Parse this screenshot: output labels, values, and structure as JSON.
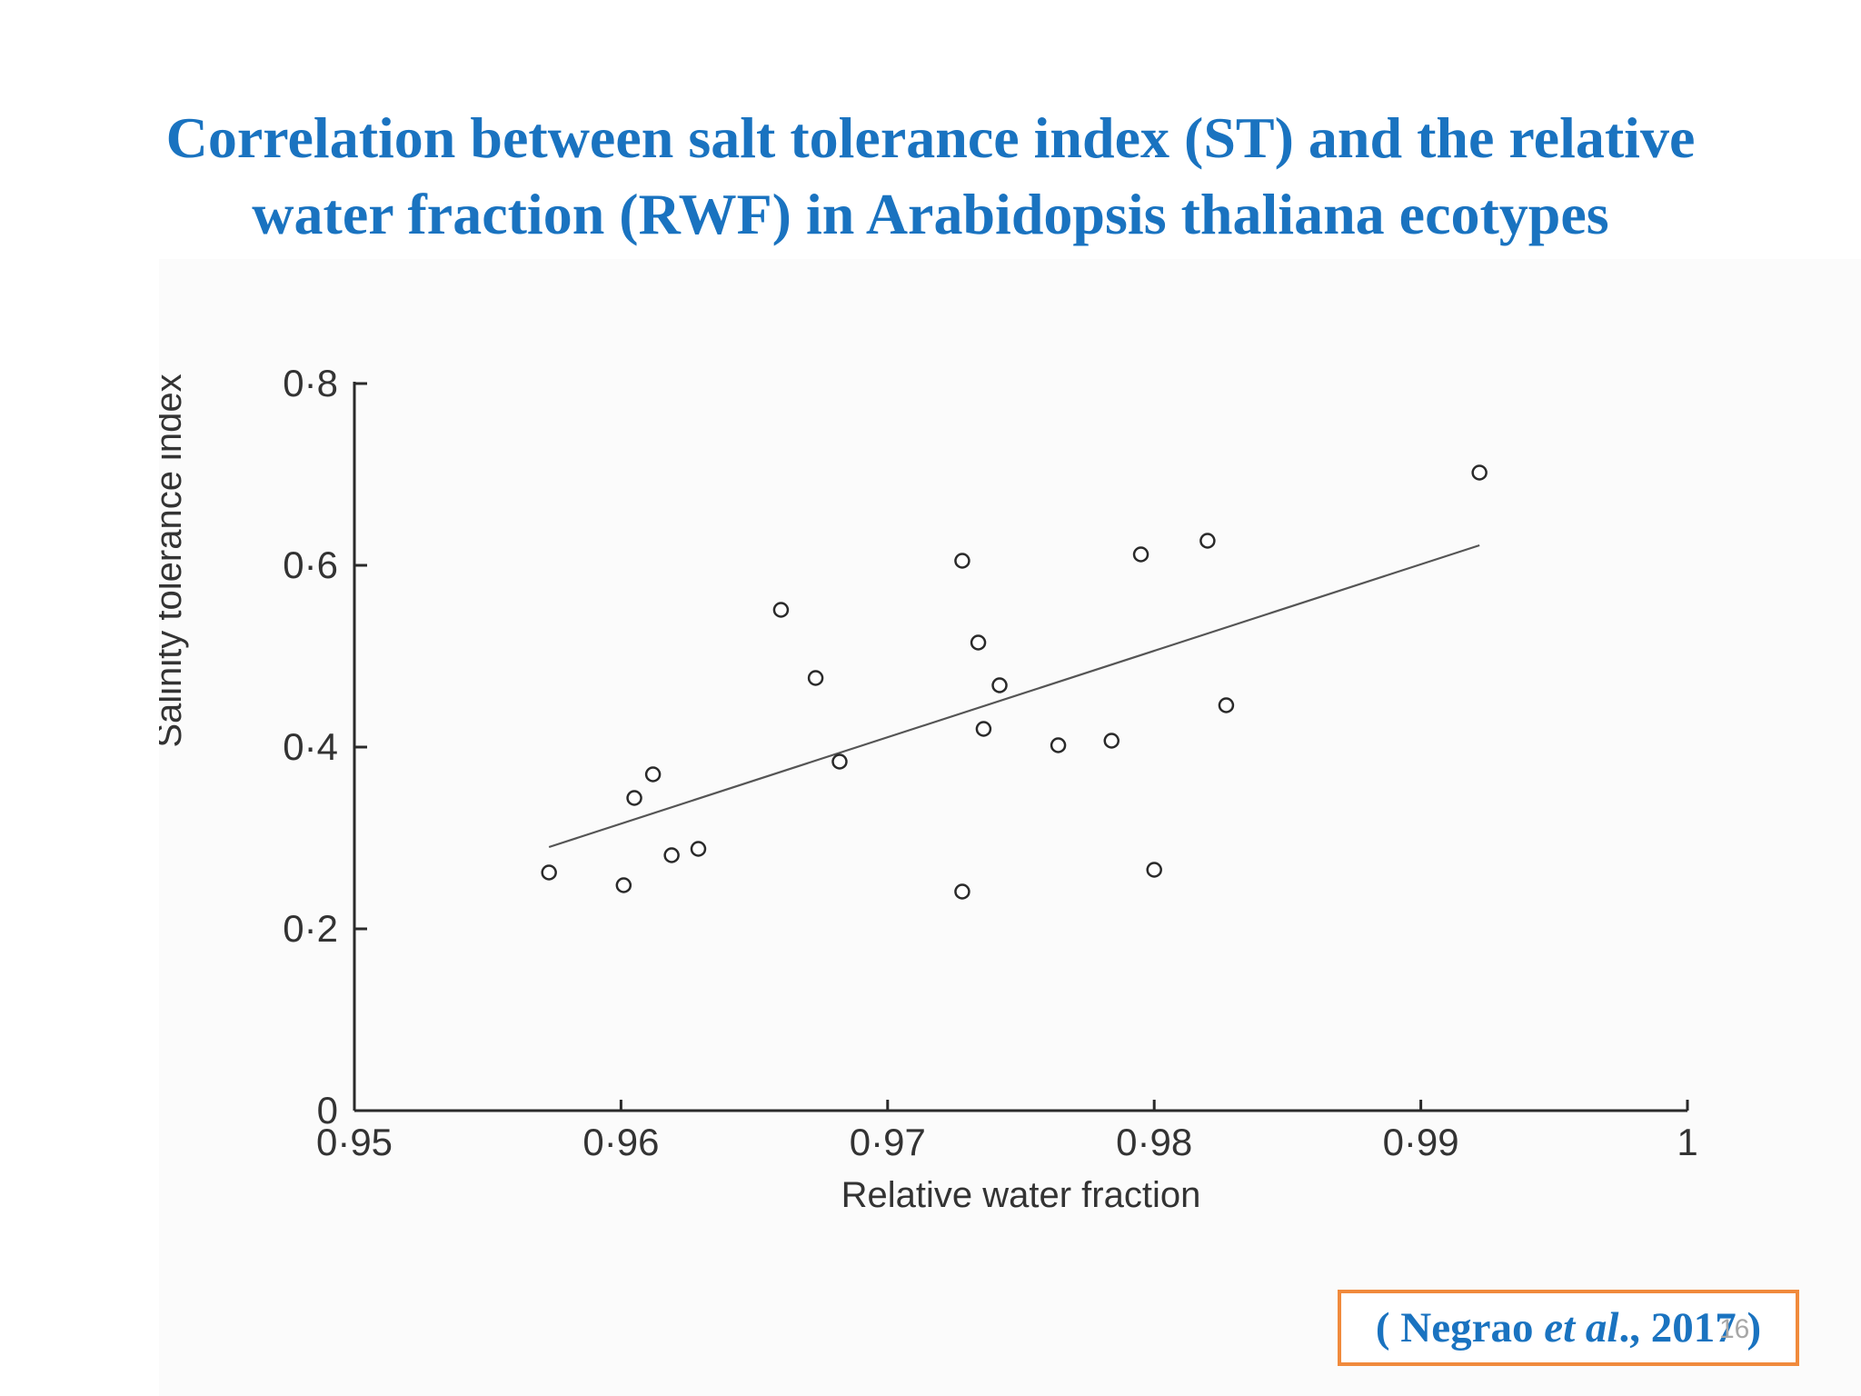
{
  "slide": {
    "title_line1": "Correlation between salt tolerance index (ST) and the relative",
    "title_line2": "water fraction (RWF) in Arabidopsis thaliana ecotypes",
    "citation_open": "( Negrao ",
    "citation_italic": "et al",
    "citation_close": "., 2017 )",
    "slide_number": "16",
    "colors": {
      "title": "#1a73c0",
      "citation_border": "#f08a3c",
      "ink": "#2a2a2a"
    }
  },
  "chart_data": {
    "type": "scatter",
    "xlabel": "Relative water fraction",
    "ylabel": "Salinity tolerance index",
    "xlim": [
      0.95,
      1.0
    ],
    "ylim": [
      0,
      0.8
    ],
    "xticks": [
      0.95,
      0.96,
      0.97,
      0.98,
      0.99,
      1.0
    ],
    "xtick_labels": [
      "0·95",
      "0·96",
      "0·97",
      "0·98",
      "0·99",
      "1"
    ],
    "yticks": [
      0,
      0.2,
      0.4,
      0.6,
      0.8
    ],
    "ytick_labels": [
      "0",
      "0·2",
      "0·4",
      "0·6",
      "0·8"
    ],
    "grid": false,
    "marker": "open-circle",
    "points": [
      {
        "x": 0.9573,
        "y": 0.262
      },
      {
        "x": 0.9601,
        "y": 0.248
      },
      {
        "x": 0.9605,
        "y": 0.344
      },
      {
        "x": 0.9612,
        "y": 0.37
      },
      {
        "x": 0.9619,
        "y": 0.281
      },
      {
        "x": 0.9629,
        "y": 0.288
      },
      {
        "x": 0.966,
        "y": 0.551
      },
      {
        "x": 0.9673,
        "y": 0.476
      },
      {
        "x": 0.9682,
        "y": 0.384
      },
      {
        "x": 0.9728,
        "y": 0.605
      },
      {
        "x": 0.9728,
        "y": 0.241
      },
      {
        "x": 0.9734,
        "y": 0.515
      },
      {
        "x": 0.9736,
        "y": 0.42
      },
      {
        "x": 0.9742,
        "y": 0.468
      },
      {
        "x": 0.9764,
        "y": 0.402
      },
      {
        "x": 0.9784,
        "y": 0.407
      },
      {
        "x": 0.9795,
        "y": 0.612
      },
      {
        "x": 0.98,
        "y": 0.265
      },
      {
        "x": 0.982,
        "y": 0.627
      },
      {
        "x": 0.9827,
        "y": 0.446
      },
      {
        "x": 0.9922,
        "y": 0.702
      }
    ],
    "fit_line": {
      "x": [
        0.9573,
        0.9922
      ],
      "y": [
        0.29,
        0.622
      ]
    }
  }
}
